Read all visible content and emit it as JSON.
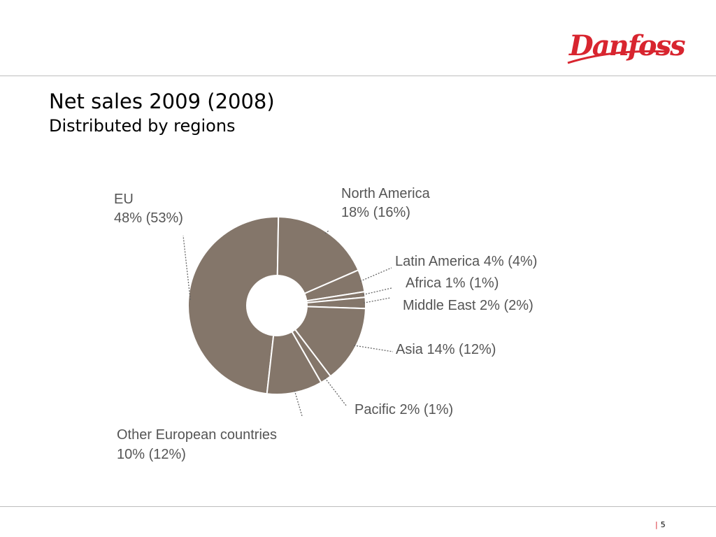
{
  "header": {
    "logo_text": "Danfoss"
  },
  "slide": {
    "title": "Net sales 2009 (2008)",
    "subtitle": "Distributed by regions",
    "page_number": "5"
  },
  "colors": {
    "slice": "#84766a",
    "slice_border": "#ffffff",
    "leader": "#666666",
    "brand": "#d8252f"
  },
  "chart_data": {
    "type": "pie",
    "hole": true,
    "unit": "%",
    "series": [
      {
        "name": "2009",
        "values": [
          48,
          18,
          4,
          1,
          2,
          14,
          2,
          10
        ]
      },
      {
        "name": "2008",
        "values": [
          53,
          16,
          4,
          1,
          2,
          12,
          1,
          12
        ]
      }
    ],
    "categories": [
      "EU",
      "North America",
      "Latin America",
      "Africa",
      "Middle East",
      "Asia",
      "Pacific",
      "Other European countries"
    ],
    "labels": {
      "eu_name": "EU",
      "eu_value": "48% (53%)",
      "north_america_name": "North America",
      "north_america_value": "18% (16%)",
      "latin_america": "Latin America 4% (4%)",
      "africa": "Africa 1% (1%)",
      "middle_east": "Middle East 2% (2%)",
      "asia": "Asia 14% (12%)",
      "pacific": "Pacific 2% (1%)",
      "other_europe_name": "Other European countries",
      "other_europe_value": "10% (12%)"
    }
  }
}
